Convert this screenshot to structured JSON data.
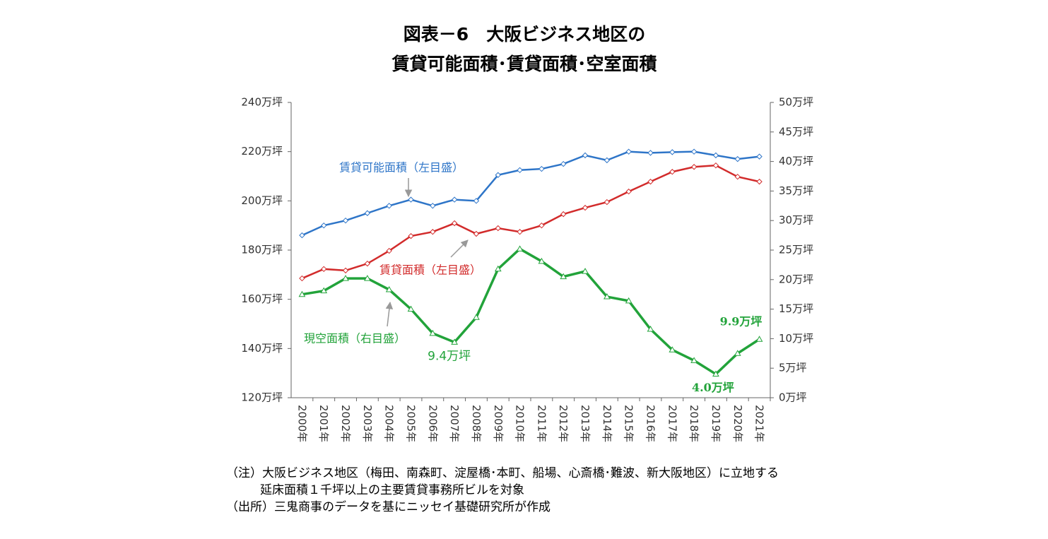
{
  "chart_data": {
    "type": "line",
    "title": [
      "図表－6　大阪ビジネス地区の",
      "賃貸可能面積･賃貸面積･空室面積"
    ],
    "categories": [
      "2000年",
      "2001年",
      "2002年",
      "2003年",
      "2004年",
      "2005年",
      "2006年",
      "2007年",
      "2008年",
      "2009年",
      "2010年",
      "2011年",
      "2012年",
      "2013年",
      "2014年",
      "2015年",
      "2016年",
      "2017年",
      "2018年",
      "2019年",
      "2020年",
      "2021年"
    ],
    "series": [
      {
        "name": "賃貸可能面積（左目盛）",
        "color": "#2e75c8",
        "marker": "diamond",
        "values": [
          186,
          190,
          192,
          195,
          198,
          200.5,
          198,
          200.5,
          200,
          210.5,
          212.5,
          213,
          215,
          218.5,
          216.5,
          220,
          219.5,
          219.8,
          220,
          218.5,
          217,
          218
        ]
      },
      {
        "name": "賃貸面積（左目盛）",
        "color": "#d22b2b",
        "marker": "diamond",
        "values": [
          168.5,
          172.3,
          171.7,
          174.5,
          179.7,
          185.7,
          187.4,
          190.9,
          186.6,
          188.9,
          187.4,
          190,
          194.6,
          197.2,
          199.5,
          203.8,
          207.8,
          211.8,
          213.8,
          214.4,
          209.8,
          207.8
        ]
      },
      {
        "name": "現空面積（右目盛）",
        "color": "#22a33a",
        "marker": "triangle",
        "axis": "y2",
        "values": [
          17.5,
          18.1,
          20.2,
          20.2,
          18.3,
          15.0,
          10.9,
          9.4,
          13.6,
          21.8,
          25.2,
          23.1,
          20.5,
          21.4,
          17.1,
          16.4,
          11.6,
          8.1,
          6.3,
          4.0,
          7.5,
          9.9
        ],
        "value_labels": [
          null,
          null,
          null,
          null,
          null,
          null,
          null,
          "9.4万坪",
          null,
          null,
          null,
          null,
          null,
          null,
          null,
          null,
          null,
          null,
          null,
          "4.0万坪",
          null,
          "9.9万坪"
        ]
      }
    ],
    "ylim": [
      120,
      240
    ],
    "yticks": [
      {
        "value": 120,
        "label": "120万坪"
      },
      {
        "value": 140,
        "label": "140万坪"
      },
      {
        "value": 160,
        "label": "160万坪"
      },
      {
        "value": 180,
        "label": "180万坪"
      },
      {
        "value": 200,
        "label": "200万坪"
      },
      {
        "value": 220,
        "label": "220万坪"
      },
      {
        "value": 240,
        "label": "240万坪"
      }
    ],
    "y2lim": [
      0,
      50
    ],
    "y2ticks": [
      {
        "value": 0,
        "label": "0万坪"
      },
      {
        "value": 5,
        "label": "5万坪"
      },
      {
        "value": 10,
        "label": "10万坪"
      },
      {
        "value": 15,
        "label": "15万坪"
      },
      {
        "value": 20,
        "label": "20万坪"
      },
      {
        "value": 25,
        "label": "25万坪"
      },
      {
        "value": 30,
        "label": "30万坪"
      },
      {
        "value": 35,
        "label": "35万坪"
      },
      {
        "value": 40,
        "label": "40万坪"
      },
      {
        "value": 45,
        "label": "45万坪"
      },
      {
        "value": 50,
        "label": "50万坪"
      }
    ],
    "grid": false,
    "notes": [
      "（注）大阪ビジネス地区（梅田、南森町、淀屋橋･本町、船場、心斎橋･難波、新大阪地区）に立地する",
      "延床面積１千坪以上の主要賃貸事務所ビルを対象",
      "（出所）三鬼商事のデータを基にニッセイ基礎研究所が作成"
    ]
  }
}
